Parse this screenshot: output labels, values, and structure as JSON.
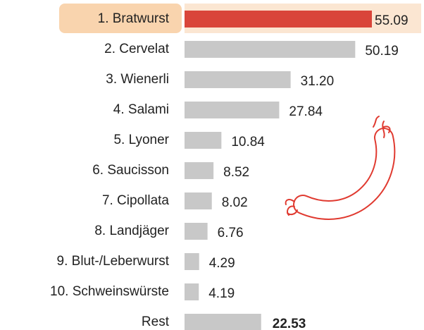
{
  "chart_data": {
    "type": "bar",
    "categories": [
      "1. Bratwurst",
      "2. Cervelat",
      "3. Wienerli",
      "4. Salami",
      "5. Lyoner",
      "6. Saucisson",
      "7. Cipollata",
      "8. Landjäger",
      "9. Blut-/Leberwurst",
      "10. Schweinswürste",
      "Rest"
    ],
    "values": [
      55.09,
      50.19,
      31.2,
      27.84,
      10.84,
      8.52,
      8.02,
      6.76,
      4.29,
      4.19,
      22.53
    ],
    "value_labels": [
      "55.09",
      "50.19",
      "31.20",
      "27.84",
      "10.84",
      "8.52",
      "8.02",
      "6.76",
      "4.29",
      "4.19",
      "22.53"
    ],
    "colors": [
      "#d9453a",
      "#c8c8c8",
      "#c8c8c8",
      "#c8c8c8",
      "#c8c8c8",
      "#c8c8c8",
      "#c8c8c8",
      "#c8c8c8",
      "#c8c8c8",
      "#c8c8c8",
      "#c8c8c8"
    ]
  }
}
